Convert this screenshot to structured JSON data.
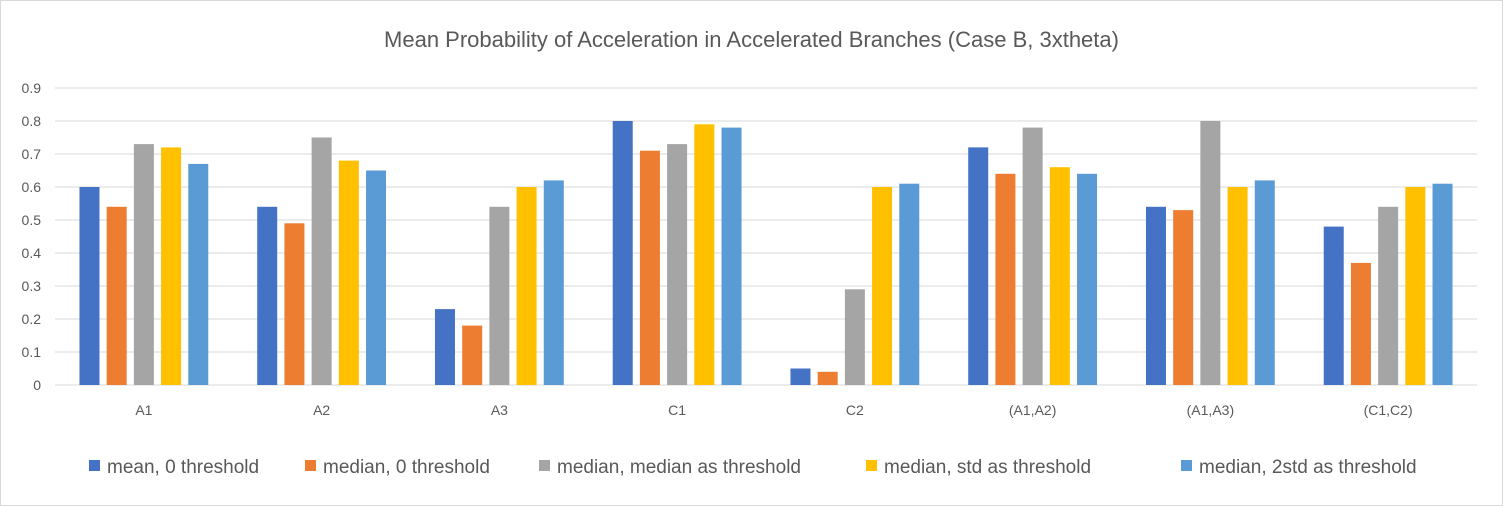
{
  "chart_data": {
    "type": "bar",
    "title": "Mean Probability of Acceleration in Accelerated Branches (Case B, 3xtheta)",
    "xlabel": "",
    "ylabel": "",
    "ylim": [
      0,
      0.9
    ],
    "yticks": [
      "0",
      "0.1",
      "0.2",
      "0.3",
      "0.4",
      "0.5",
      "0.6",
      "0.7",
      "0.8",
      "0.9"
    ],
    "categories": [
      "A1",
      "A2",
      "A3",
      "C1",
      "C2",
      "(A1,A2)",
      "(A1,A3)",
      "(C1,C2)"
    ],
    "series": [
      {
        "name": "mean, 0 threshold",
        "color": "#4472c4",
        "values": [
          0.6,
          0.54,
          0.23,
          0.8,
          0.05,
          0.72,
          0.54,
          0.48
        ]
      },
      {
        "name": "median, 0 threshold",
        "color": "#ed7d31",
        "values": [
          0.54,
          0.49,
          0.18,
          0.71,
          0.04,
          0.64,
          0.53,
          0.37
        ]
      },
      {
        "name": "median, median as threshold",
        "color": "#a5a5a5",
        "values": [
          0.73,
          0.75,
          0.54,
          0.73,
          0.29,
          0.78,
          0.8,
          0.54
        ]
      },
      {
        "name": "median, std as threshold",
        "color": "#ffc000",
        "values": [
          0.72,
          0.68,
          0.6,
          0.79,
          0.6,
          0.66,
          0.6,
          0.6
        ]
      },
      {
        "name": "median, 2std as threshold",
        "color": "#5b9bd5",
        "values": [
          0.67,
          0.65,
          0.62,
          0.78,
          0.61,
          0.64,
          0.62,
          0.61
        ]
      }
    ],
    "grid": true,
    "legend_position": "bottom"
  }
}
